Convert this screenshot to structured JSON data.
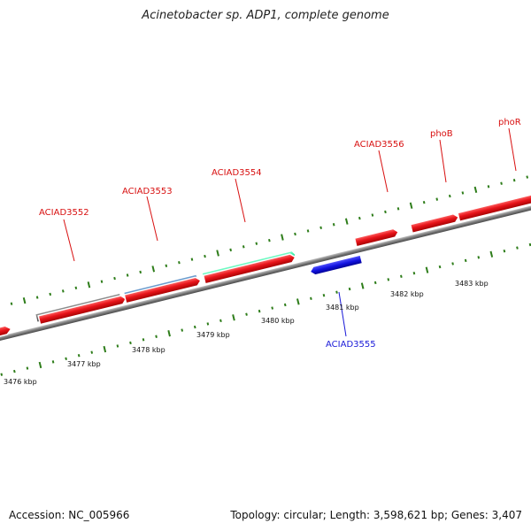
{
  "title": "Acinetobacter sp. ADP1, complete genome",
  "footer": {
    "accession": "Accession: NC_005966",
    "summary": "Topology: circular; Length: 3,598,621 bp; Genes: 3,407"
  },
  "colors": {
    "forward_gene": "#e8141a",
    "backbone": "#8a8a8a",
    "tick": "#2e7d1a",
    "label_forward": "#d81010",
    "label_reverse": "#1a1ad8",
    "reverse_gene": "#1212e0",
    "gray_feature": "#707070",
    "steelblue_feature": "#4a7fb5",
    "green_feature": "#2ee8a0"
  },
  "scale_labels": [
    "3476 kbp",
    "3477 kbp",
    "3478 kbp",
    "3479 kbp",
    "3480 kbp",
    "3481 kbp",
    "3482 kbp",
    "3483 kbp"
  ],
  "gene_labels": [
    {
      "text": "ACIAD3552",
      "strand": "forward"
    },
    {
      "text": "ACIAD3553",
      "strand": "forward"
    },
    {
      "text": "ACIAD3554",
      "strand": "forward"
    },
    {
      "text": "ACIAD3556",
      "strand": "forward"
    },
    {
      "text": "phoB",
      "strand": "forward"
    },
    {
      "text": "phoR",
      "strand": "forward"
    },
    {
      "text": "ACIAD3555",
      "strand": "reverse"
    }
  ]
}
